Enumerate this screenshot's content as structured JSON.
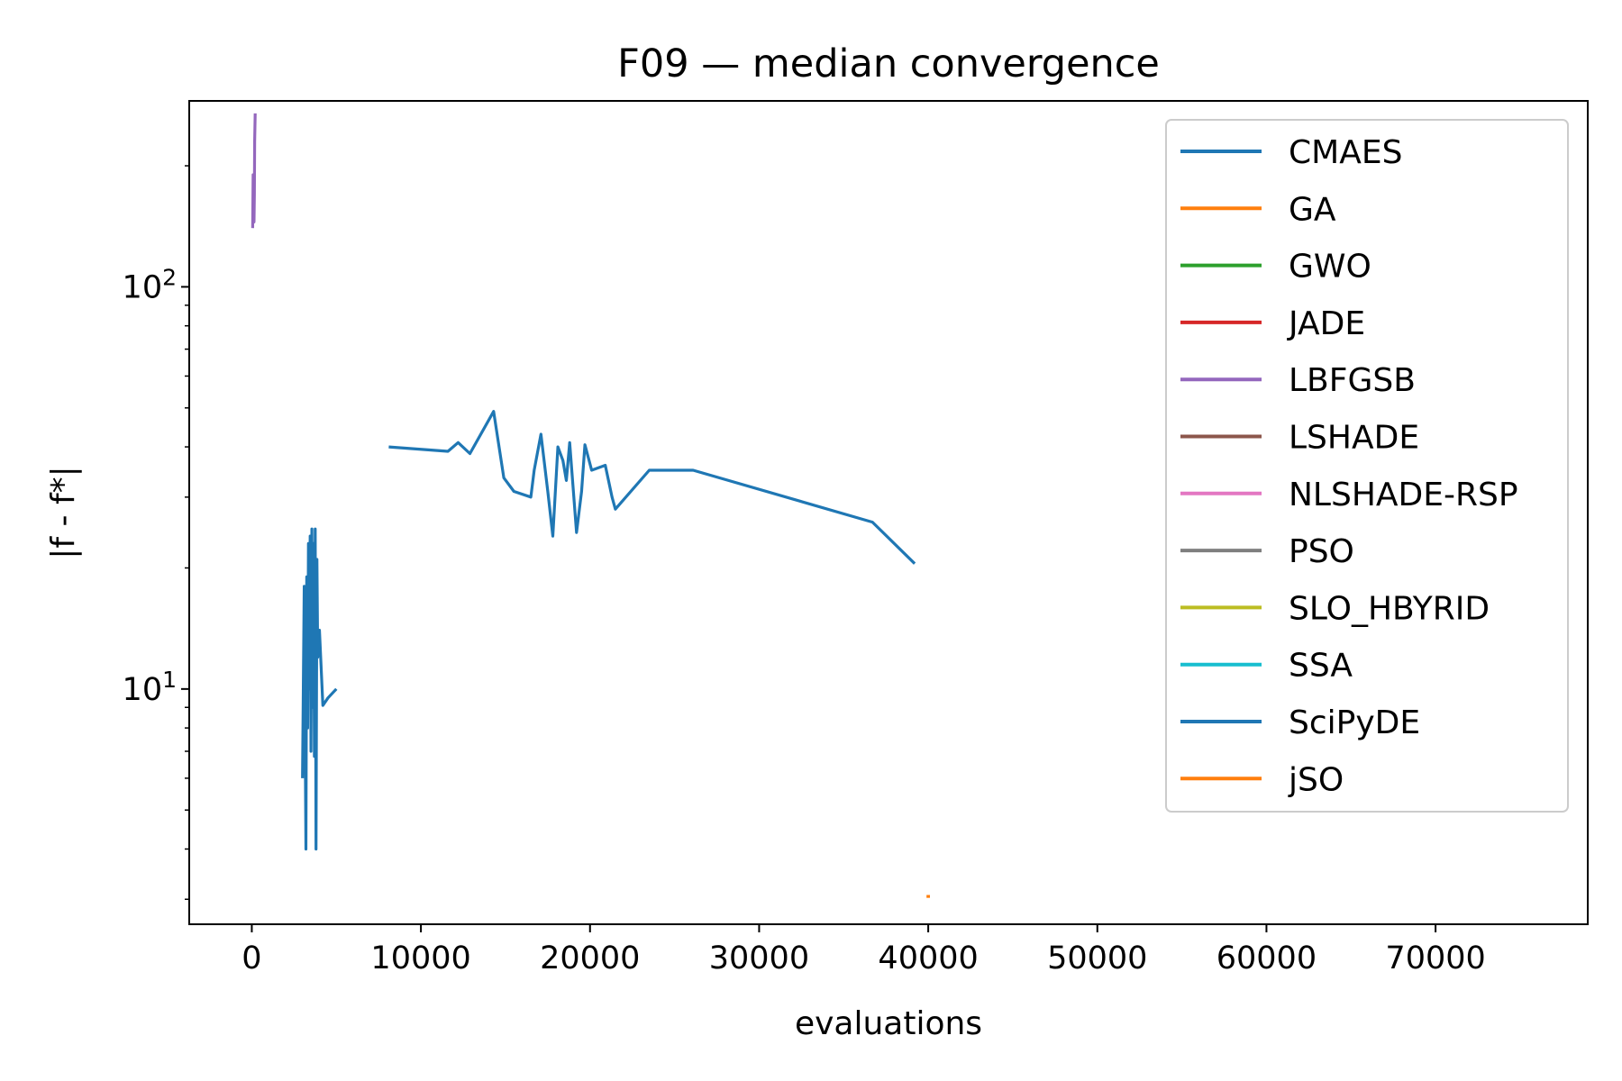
{
  "chart_data": {
    "type": "line",
    "title": "F09 — median convergence",
    "xlabel": "evaluations",
    "ylabel": "|f - f*|",
    "yscale": "log",
    "xlim": [
      -3700,
      79000
    ],
    "ylim": [
      2.6,
      290
    ],
    "xticks": [
      0,
      10000,
      20000,
      30000,
      40000,
      50000,
      60000,
      70000
    ],
    "yticks": [
      10,
      100
    ],
    "ytick_labels": [
      {
        "base": "10",
        "exp": "1"
      },
      {
        "base": "10",
        "exp": "2"
      }
    ],
    "grid": false,
    "legend_placement": "top-right",
    "series": [
      {
        "name": "CMAES",
        "color": "#1f77b4",
        "x": [
          3000,
          3100,
          3200,
          3250,
          3300,
          3350,
          3400,
          3450,
          3500,
          3550,
          3600,
          3650,
          3700,
          3750,
          3800,
          3850,
          3900,
          4000,
          4200,
          4500,
          4800,
          5000
        ],
        "y": [
          6,
          18,
          4,
          19,
          8,
          23,
          10,
          24,
          7,
          25,
          9,
          23,
          6.8,
          25,
          4,
          21,
          12,
          14,
          9.1,
          9.5,
          9.8,
          10
        ]
      },
      {
        "name": "GA",
        "color": "#ff7f0e",
        "x": [],
        "y": []
      },
      {
        "name": "GWO",
        "color": "#2ca02c",
        "x": [],
        "y": []
      },
      {
        "name": "JADE",
        "color": "#d62728",
        "x": [],
        "y": []
      },
      {
        "name": "LBFGSB",
        "color": "#9467bd",
        "x": [
          50,
          80,
          110,
          130,
          150,
          170,
          200
        ],
        "y": [
          140,
          190,
          150,
          145,
          170,
          230,
          270
        ]
      },
      {
        "name": "LSHADE",
        "color": "#8c564b",
        "x": [],
        "y": []
      },
      {
        "name": "NLSHADE-RSP",
        "color": "#e377c2",
        "x": [],
        "y": []
      },
      {
        "name": "PSO",
        "color": "#7f7f7f",
        "x": [],
        "y": []
      },
      {
        "name": "SLO_HBYRID",
        "color": "#bcbd22",
        "x": [],
        "y": []
      },
      {
        "name": "SSA",
        "color": "#17becf",
        "x": [],
        "y": []
      },
      {
        "name": "SciPyDE",
        "color": "#1f77b4",
        "x": [
          8100,
          11600,
          12200,
          12900,
          14300,
          14900,
          15500,
          16500,
          16700,
          17100,
          17500,
          17800,
          18100,
          18400,
          18600,
          18800,
          19200,
          19500,
          19700,
          20100,
          20900,
          21300,
          21500,
          23500,
          26100,
          36700,
          39200
        ],
        "y": [
          40,
          39,
          41,
          38.5,
          49,
          33.5,
          31,
          30,
          35,
          43,
          31,
          24,
          40,
          37,
          33,
          41,
          24.5,
          31,
          40.5,
          35,
          36,
          30,
          28,
          35,
          35,
          26,
          20.5
        ]
      },
      {
        "name": "jSO",
        "color": "#ff7f0e",
        "x": [
          39900,
          40100
        ],
        "y": [
          3.05,
          3.05
        ]
      }
    ]
  }
}
